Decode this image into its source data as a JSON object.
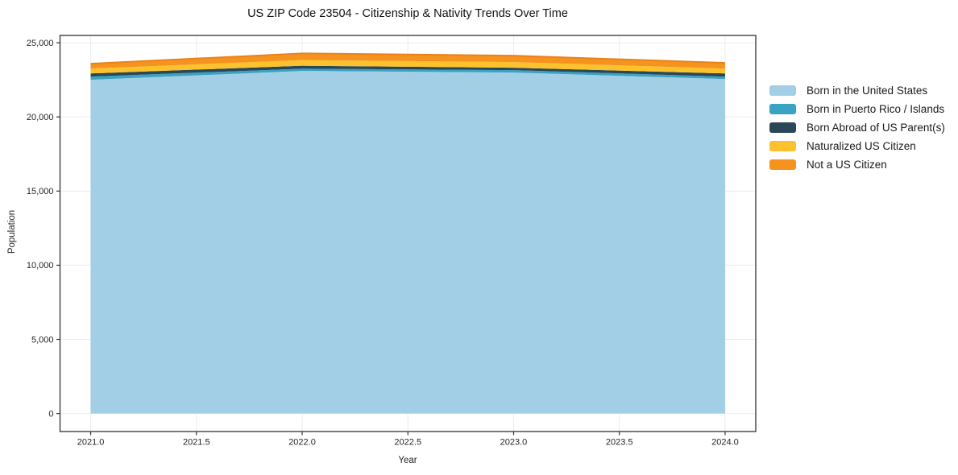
{
  "chart_data": {
    "type": "area",
    "stacked": true,
    "title": "US ZIP Code 23504 - Citizenship & Nativity Trends Over Time",
    "xlabel": "Year",
    "ylabel": "Population",
    "x": [
      2021,
      2022,
      2023,
      2024
    ],
    "series": [
      {
        "name": "Born in the United States",
        "color": "#A2CFE5",
        "values": [
          22500,
          23100,
          22990,
          22550
        ]
      },
      {
        "name": "Born in Puerto Rico / Islands",
        "color": "#3AA2C2",
        "values": [
          220,
          150,
          160,
          165
        ]
      },
      {
        "name": "Born Abroad of US Parent(s)",
        "color": "#2A4758",
        "values": [
          210,
          200,
          165,
          215
        ]
      },
      {
        "name": "Naturalized US Citizen",
        "color": "#FCC22D",
        "values": [
          330,
          380,
          380,
          330
        ]
      },
      {
        "name": "Not a US Citizen",
        "color": "#F6931E",
        "values": [
          330,
          450,
          435,
          380
        ]
      }
    ],
    "totals": [
      23590,
      24280,
      24130,
      23640
    ],
    "xticks": [
      2021.0,
      2021.5,
      2022.0,
      2022.5,
      2023.0,
      2023.5,
      2024.0
    ],
    "xticklabels": [
      "2021.0",
      "2021.5",
      "2022.0",
      "2022.5",
      "2023.0",
      "2023.5",
      "2024.0"
    ],
    "yticks": [
      0,
      5000,
      10000,
      15000,
      20000,
      25000
    ],
    "yticklabels": [
      "0",
      "5,000",
      "10,000",
      "15,000",
      "20,000",
      "25,000"
    ],
    "xlim": [
      2020.855,
      2024.145
    ],
    "ylim": [
      -1214,
      25494
    ],
    "grid": true,
    "legend_position": "right-of-plot",
    "styles": {
      "background": "#FFFFFF",
      "grid_color": "#ECECEC",
      "border_color": "#333333",
      "tick_color": "#333333",
      "tick_label_color": "#262626",
      "title_color": "#111111",
      "top_edge_color": "#E9821A"
    }
  }
}
